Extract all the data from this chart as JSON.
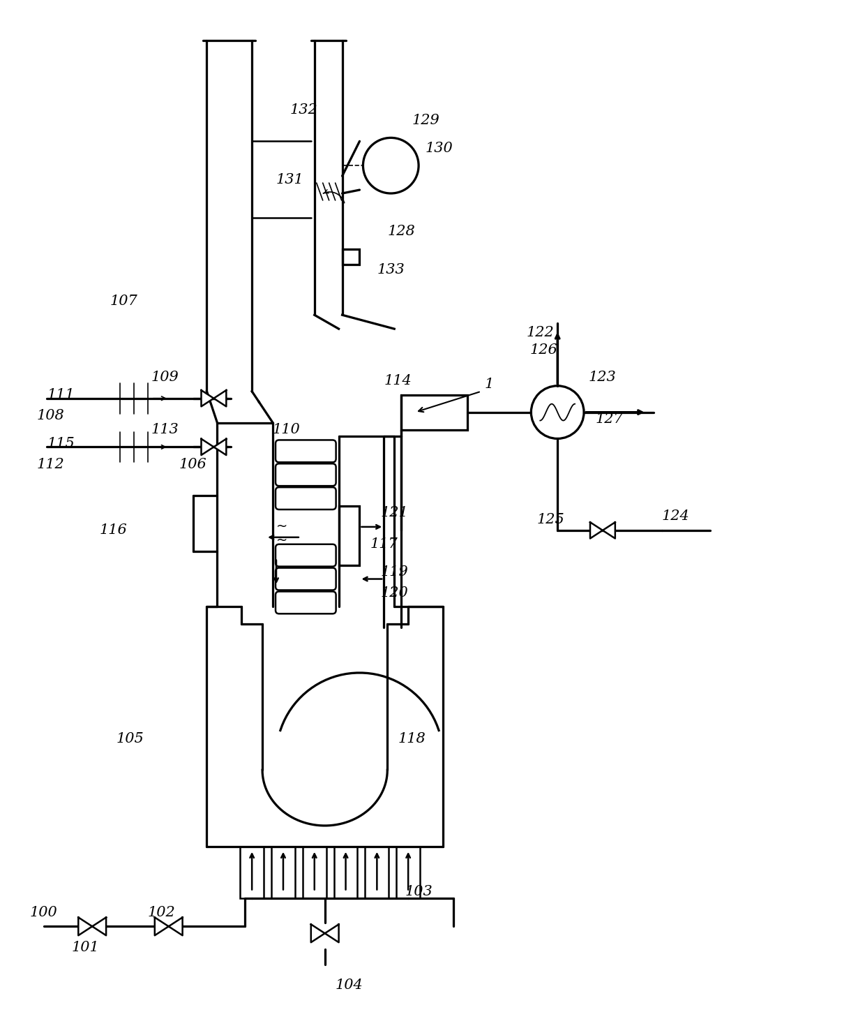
{
  "bg_color": "#ffffff",
  "line_color": "#000000",
  "fig_width": 12.4,
  "fig_height": 14.6,
  "lw": 1.8
}
